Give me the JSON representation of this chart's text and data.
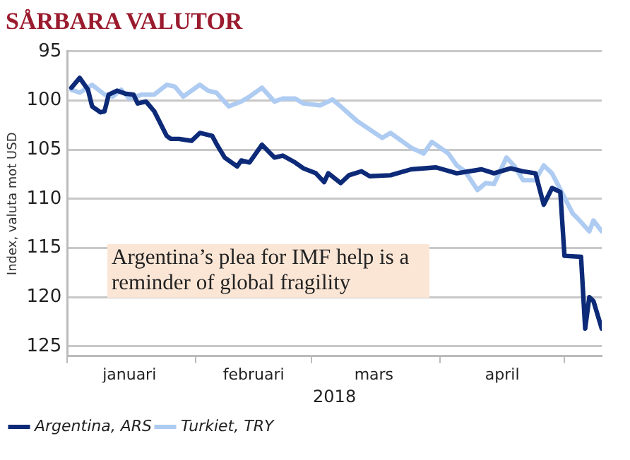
{
  "chart_data": {
    "type": "line",
    "title": "SÅRBARA VALUTOR",
    "xlabel": "2018",
    "ylabel": "Index, valuta mot USD",
    "annotations": [
      "Argentina’s plea for IMF help is a reminder of global fragility"
    ],
    "series": [
      {
        "name": "Argentina, ARS",
        "color": "#0d2a78",
        "x": [
          "2018-01-02",
          "2018-01-04",
          "2018-01-06",
          "2018-01-07",
          "2018-01-09",
          "2018-01-10",
          "2018-01-11",
          "2018-01-13",
          "2018-01-15",
          "2018-01-17",
          "2018-01-18",
          "2018-01-20",
          "2018-01-22",
          "2018-01-25",
          "2018-01-26",
          "2018-01-28",
          "2018-01-31",
          "2018-02-02",
          "2018-02-05",
          "2018-02-06",
          "2018-02-08",
          "2018-02-11",
          "2018-02-12",
          "2018-02-14",
          "2018-02-17",
          "2018-02-20",
          "2018-02-22",
          "2018-02-25",
          "2018-02-27",
          "2018-03-02",
          "2018-03-04",
          "2018-03-05",
          "2018-03-08",
          "2018-03-10",
          "2018-03-13",
          "2018-03-15",
          "2018-03-20",
          "2018-03-25",
          "2018-03-31",
          "2018-04-05",
          "2018-04-11",
          "2018-04-14",
          "2018-04-18",
          "2018-04-21",
          "2018-04-24",
          "2018-04-26",
          "2018-04-28",
          "2018-04-30",
          "2018-05-01",
          "2018-05-05",
          "2018-05-06",
          "2018-05-07",
          "2018-05-08",
          "2018-05-10"
        ],
        "values": [
          98.7,
          97.7,
          98.9,
          100.6,
          101.2,
          101.1,
          99.4,
          99.0,
          99.3,
          99.4,
          100.3,
          100.1,
          101.1,
          103.6,
          103.9,
          103.9,
          104.1,
          103.3,
          103.6,
          104.4,
          105.8,
          106.7,
          106.1,
          106.3,
          104.5,
          105.8,
          105.6,
          106.3,
          106.9,
          107.4,
          108.3,
          107.4,
          108.4,
          107.6,
          107.2,
          107.7,
          107.6,
          107.0,
          106.8,
          107.4,
          107.0,
          107.4,
          106.9,
          107.2,
          107.4,
          110.6,
          108.9,
          109.3,
          115.8,
          115.9,
          123.2,
          120.0,
          120.4,
          123.2
        ]
      },
      {
        "name": "Turkiet, TRY",
        "color": "#aecbf2",
        "x": [
          "2018-01-02",
          "2018-01-04",
          "2018-01-07",
          "2018-01-10",
          "2018-01-12",
          "2018-01-14",
          "2018-01-16",
          "2018-01-19",
          "2018-01-22",
          "2018-01-25",
          "2018-01-27",
          "2018-01-29",
          "2018-02-02",
          "2018-02-04",
          "2018-02-06",
          "2018-02-09",
          "2018-02-12",
          "2018-02-14",
          "2018-02-17",
          "2018-02-20",
          "2018-02-22",
          "2018-02-25",
          "2018-02-27",
          "2018-03-03",
          "2018-03-06",
          "2018-03-08",
          "2018-03-12",
          "2018-03-18",
          "2018-03-20",
          "2018-03-25",
          "2018-03-28",
          "2018-03-30",
          "2018-04-03",
          "2018-04-05",
          "2018-04-07",
          "2018-04-10",
          "2018-04-12",
          "2018-04-14",
          "2018-04-17",
          "2018-04-19",
          "2018-04-21",
          "2018-04-24",
          "2018-04-26",
          "2018-04-28",
          "2018-05-03",
          "2018-05-04",
          "2018-05-07",
          "2018-05-08",
          "2018-05-10"
        ],
        "values": [
          98.9,
          99.2,
          98.4,
          99.4,
          99.6,
          98.9,
          99.8,
          99.4,
          99.4,
          98.4,
          98.6,
          99.6,
          98.4,
          99.0,
          99.2,
          100.6,
          100.1,
          99.6,
          98.7,
          100.1,
          99.8,
          99.8,
          100.3,
          100.5,
          99.9,
          100.6,
          102.1,
          103.8,
          103.3,
          104.8,
          105.4,
          104.2,
          105.4,
          106.6,
          107.2,
          109.1,
          108.4,
          108.5,
          105.8,
          106.7,
          108.1,
          108.1,
          106.6,
          107.4,
          111.5,
          111.9,
          113.3,
          112.2,
          113.3
        ]
      }
    ],
    "xlim": [
      "2018-01-01",
      "2018-05-10"
    ],
    "xticks": [
      {
        "value": "2018-01-01",
        "label": null
      },
      {
        "value": "2018-01-16",
        "label": "januari"
      },
      {
        "value": "2018-02-01",
        "label": null
      },
      {
        "value": "2018-02-15",
        "label": "februari"
      },
      {
        "value": "2018-03-01",
        "label": null
      },
      {
        "value": "2018-03-16",
        "label": "mars"
      },
      {
        "value": "2018-04-01",
        "label": null
      },
      {
        "value": "2018-04-16",
        "label": "april"
      },
      {
        "value": "2018-05-01",
        "label": null
      }
    ],
    "ylim": [
      126,
      95
    ],
    "yticks": [
      95,
      100,
      105,
      110,
      115,
      120,
      125
    ],
    "grid": "y",
    "legend": "bottom left",
    "marker": "none",
    "line_style": "solid"
  }
}
